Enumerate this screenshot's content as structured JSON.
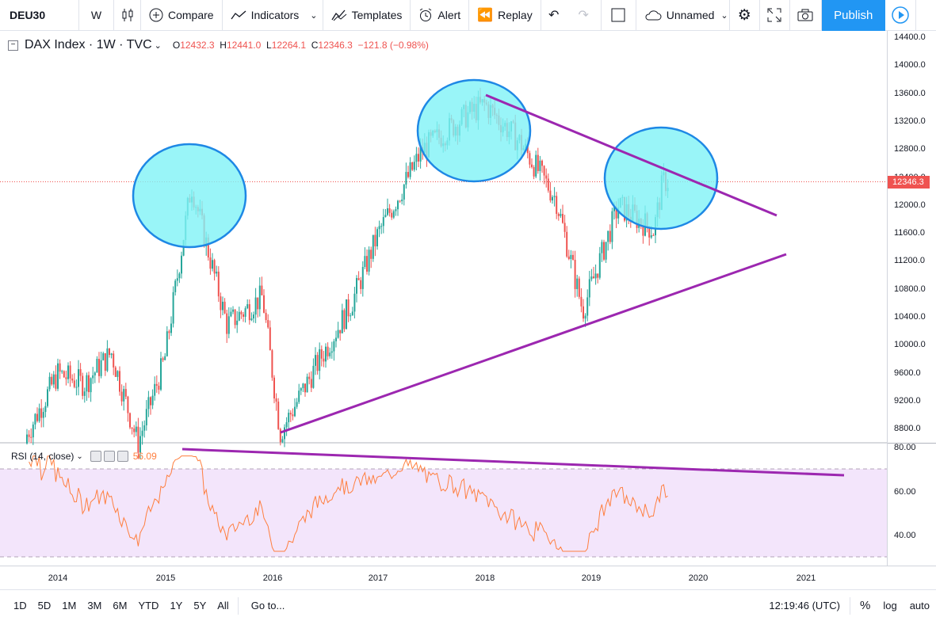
{
  "toolbar": {
    "symbol": "DEU30",
    "interval": "W",
    "compare": "Compare",
    "indicators": "Indicators",
    "templates": "Templates",
    "alert": "Alert",
    "replay": "Replay",
    "layout_name": "Unnamed",
    "publish": "Publish"
  },
  "legend": {
    "title": "DAX Index · 1W · TVC",
    "open_label": "O",
    "open": "12432.3",
    "high_label": "H",
    "high": "12441.0",
    "low_label": "L",
    "low": "12264.1",
    "close_label": "C",
    "close": "12346.3",
    "change": "−121.8 (−0.98%)"
  },
  "rsi": {
    "label": "RSI (14, close)",
    "value": "56.09"
  },
  "price_axis": [
    "14400.0",
    "14000.0",
    "13600.0",
    "13200.0",
    "12800.0",
    "12400.0",
    "12000.0",
    "11600.0",
    "11200.0",
    "10800.0",
    "10400.0",
    "10000.0",
    "9600.0",
    "9200.0",
    "8800.0"
  ],
  "last_price_tag": "12346.3",
  "rsi_axis": [
    "80.00",
    "60.00",
    "40.00"
  ],
  "time_axis": [
    "2014",
    "2015",
    "2016",
    "2017",
    "2018",
    "2019",
    "2020",
    "2021"
  ],
  "bottom": {
    "ranges": [
      "1D",
      "5D",
      "1M",
      "3M",
      "6M",
      "YTD",
      "1Y",
      "5Y",
      "All"
    ],
    "goto": "Go to...",
    "clock": "12:19:46 (UTC)",
    "pct": "%",
    "log": "log",
    "auto": "auto"
  },
  "colors": {
    "up": "#26a69a",
    "down": "#ef5350",
    "trendline": "#9c27b0",
    "circle_fill": "#7ff3f6",
    "circle_stroke": "#1e88e5",
    "rsi_line": "#ff7f3f",
    "rsi_band": "#f3e5fb"
  },
  "chart_data": {
    "type": "candlestick",
    "symbol": "DAX Index",
    "interval": "1W",
    "y_range": [
      8600,
      14500
    ],
    "close_series_approx": [
      {
        "date": "2013-09",
        "close": 8600
      },
      {
        "date": "2014-01",
        "close": 9600
      },
      {
        "date": "2014-04",
        "close": 9450
      },
      {
        "date": "2014-07",
        "close": 9900
      },
      {
        "date": "2014-10",
        "close": 8600
      },
      {
        "date": "2015-01",
        "close": 9800
      },
      {
        "date": "2015-04",
        "close": 12300
      },
      {
        "date": "2015-08",
        "close": 10300
      },
      {
        "date": "2015-12",
        "close": 10700
      },
      {
        "date": "2016-02",
        "close": 8750
      },
      {
        "date": "2016-06",
        "close": 9700
      },
      {
        "date": "2016-10",
        "close": 10600
      },
      {
        "date": "2017-01",
        "close": 11600
      },
      {
        "date": "2017-06",
        "close": 12800
      },
      {
        "date": "2017-11",
        "close": 13300
      },
      {
        "date": "2018-01",
        "close": 13450
      },
      {
        "date": "2018-05",
        "close": 12900
      },
      {
        "date": "2018-09",
        "close": 12100
      },
      {
        "date": "2018-12",
        "close": 10500
      },
      {
        "date": "2019-04",
        "close": 12000
      },
      {
        "date": "2019-08",
        "close": 11650
      },
      {
        "date": "2019-09",
        "close": 12346.3
      }
    ],
    "rsi_range": [
      25,
      85
    ],
    "rsi_levels": [
      30,
      70
    ]
  }
}
